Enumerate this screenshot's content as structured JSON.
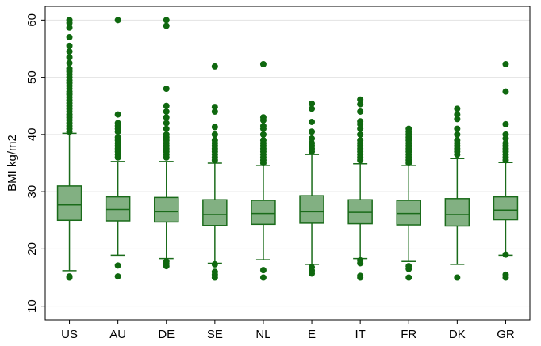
{
  "chart_data": {
    "type": "box",
    "y_label": "BMI kg/m2",
    "categories": [
      "US",
      "AU",
      "DE",
      "SE",
      "NL",
      "E",
      "IT",
      "FR",
      "DK",
      "GR"
    ],
    "boxes": [
      {
        "low": 16.2,
        "q1": 25.0,
        "median": 27.7,
        "q3": 31.0,
        "high": 40.2,
        "outliers": [
          15,
          15.2,
          40.5,
          41,
          41.5,
          42,
          42.5,
          43,
          43.5,
          44,
          44.5,
          45,
          45.5,
          46,
          46.5,
          47,
          47.5,
          48,
          48.5,
          49,
          49.5,
          50,
          50.5,
          51,
          51.5,
          52.5,
          53.5,
          54.5,
          55.5,
          57,
          58.7,
          59.5,
          60
        ]
      },
      {
        "low": 18.9,
        "q1": 24.9,
        "median": 26.9,
        "q3": 29.1,
        "high": 35.3,
        "outliers": [
          15.2,
          17.1,
          36,
          36.5,
          37,
          37.5,
          38,
          38.5,
          39,
          39.5,
          40.5,
          41,
          41.5,
          42,
          43.5,
          60
        ]
      },
      {
        "low": 18.3,
        "q1": 24.7,
        "median": 26.5,
        "q3": 29.0,
        "high": 35.3,
        "outliers": [
          17,
          17.4,
          17.8,
          36,
          36.5,
          37,
          37.5,
          38,
          38.5,
          39,
          39.5,
          40,
          41,
          42,
          43,
          44,
          45,
          48,
          59,
          60
        ]
      },
      {
        "low": 17.5,
        "q1": 24.1,
        "median": 26.0,
        "q3": 28.6,
        "high": 35.0,
        "outliers": [
          15,
          15.5,
          16,
          17.3,
          35.5,
          36,
          36.5,
          37,
          37.5,
          38,
          38.5,
          39,
          40,
          41.3,
          44,
          44.8,
          51.9
        ]
      },
      {
        "low": 18.1,
        "q1": 24.3,
        "median": 26.2,
        "q3": 28.5,
        "high": 34.6,
        "outliers": [
          15,
          16.3,
          35,
          35.5,
          36,
          36.5,
          37,
          37.5,
          38,
          38.5,
          39,
          40,
          41,
          41.5,
          42.5,
          43,
          52.3
        ]
      },
      {
        "low": 17.3,
        "q1": 24.5,
        "median": 26.5,
        "q3": 29.3,
        "high": 36.5,
        "outliers": [
          15.7,
          16.2,
          16.8,
          37,
          37.5,
          38,
          38.5,
          39.3,
          40.5,
          42.2,
          44.5,
          45.4
        ]
      },
      {
        "low": 18.3,
        "q1": 24.4,
        "median": 26.4,
        "q3": 28.6,
        "high": 34.9,
        "outliers": [
          15,
          15.3,
          17.5,
          18,
          35.5,
          36,
          36.5,
          37,
          37.5,
          38,
          38.5,
          39,
          40,
          41,
          41.8,
          42.3,
          44,
          45.3,
          46.1
        ]
      },
      {
        "low": 17.8,
        "q1": 24.2,
        "median": 26.2,
        "q3": 28.5,
        "high": 34.6,
        "outliers": [
          15,
          16.5,
          17,
          35,
          35.5,
          36,
          36.5,
          37,
          37.5,
          38,
          38.5,
          39,
          39.5,
          40,
          40.5,
          41
        ]
      },
      {
        "low": 17.3,
        "q1": 24.0,
        "median": 26.0,
        "q3": 28.8,
        "high": 35.8,
        "outliers": [
          15,
          36.5,
          37,
          37.5,
          38,
          38.5,
          39,
          40,
          41,
          42.7,
          43.5,
          44.5
        ]
      },
      {
        "low": 18.9,
        "q1": 25.1,
        "median": 26.8,
        "q3": 29.1,
        "high": 35.1,
        "outliers": [
          15,
          15.5,
          19,
          35.5,
          36,
          36.5,
          37,
          37.5,
          38,
          38.5,
          39.3,
          40,
          41.8,
          47.5,
          52.3
        ]
      }
    ],
    "box_color": "#82b082",
    "line_color": "#1a6b1a",
    "outlier_color": "#0f680f",
    "ylim": [
      7.6,
      62.4
    ],
    "yticks": [
      10,
      20,
      30,
      40,
      50,
      60
    ],
    "grid": true
  }
}
